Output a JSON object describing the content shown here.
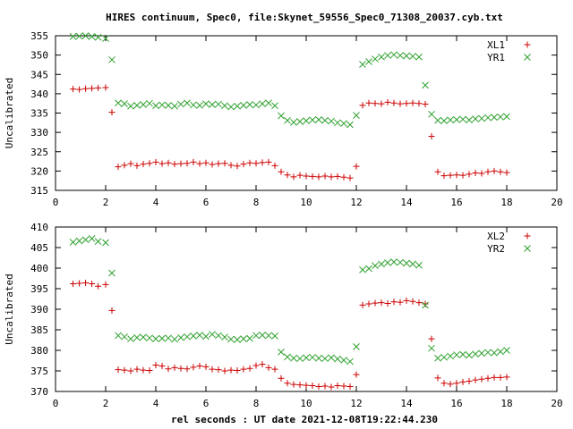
{
  "page": {
    "title": "HIRES continuum, Spec0, file:Skynet_59556_Spec0_71308_20037.cyb.txt",
    "xlabel": "rel seconds : UT date 2021-12-08T19:22:44.230"
  },
  "colors": {
    "XL": "#cc0000",
    "YR": "#2ea02e",
    "frame": "#000000"
  },
  "chart_data": [
    {
      "type": "scatter",
      "title": "HIRES continuum, Spec0, file:Skynet_59556_Spec0_71308_20037.cyb.txt",
      "xlabel": "",
      "ylabel": "Uncalibrated",
      "xlim": [
        0,
        20
      ],
      "ylim": [
        315,
        355
      ],
      "xticks": [
        0,
        2,
        4,
        6,
        8,
        10,
        12,
        14,
        16,
        18,
        20
      ],
      "yticks": [
        315,
        320,
        325,
        330,
        335,
        340,
        345,
        350,
        355
      ],
      "grid": false,
      "legend_position": "top-right",
      "series": [
        {
          "name": "XL1",
          "color": "#cc0000",
          "marker": "plus",
          "x": [
            0.7,
            0.95,
            1.2,
            1.45,
            1.7,
            2.0,
            2.25,
            2.5,
            2.75,
            3.0,
            3.25,
            3.5,
            3.75,
            4.0,
            4.25,
            4.5,
            4.75,
            5.0,
            5.25,
            5.5,
            5.75,
            6.0,
            6.25,
            6.5,
            6.75,
            7.0,
            7.25,
            7.5,
            7.75,
            8.0,
            8.25,
            8.5,
            8.75,
            9.0,
            9.25,
            9.5,
            9.75,
            10.0,
            10.25,
            10.5,
            10.75,
            11.0,
            11.25,
            11.5,
            11.75,
            12.0,
            12.25,
            12.5,
            12.75,
            13.0,
            13.25,
            13.5,
            13.75,
            14.0,
            14.25,
            14.5,
            14.75,
            15.0,
            15.25,
            15.5,
            15.75,
            16.0,
            16.25,
            16.5,
            16.75,
            17.0,
            17.25,
            17.5,
            17.75,
            18.0
          ],
          "y": [
            341.2,
            341.1,
            341.3,
            341.4,
            341.5,
            341.6,
            335.2,
            321.1,
            321.5,
            321.9,
            321.4,
            321.8,
            322.0,
            322.3,
            321.9,
            322.1,
            321.8,
            321.9,
            322.0,
            322.3,
            321.9,
            322.1,
            321.7,
            321.9,
            322.0,
            321.5,
            321.3,
            321.8,
            322.1,
            322.0,
            322.2,
            322.3,
            321.4,
            319.8,
            319.0,
            318.5,
            318.9,
            318.7,
            318.6,
            318.5,
            318.7,
            318.5,
            318.6,
            318.4,
            318.2,
            321.2,
            337.0,
            337.6,
            337.5,
            337.4,
            337.8,
            337.6,
            337.4,
            337.5,
            337.6,
            337.5,
            337.3,
            329.0,
            319.8,
            318.8,
            318.9,
            319.0,
            318.9,
            319.2,
            319.5,
            319.4,
            319.8,
            320.0,
            319.8,
            319.6
          ]
        },
        {
          "name": "YR1",
          "color": "#2ea02e",
          "marker": "cross",
          "x": [
            0.7,
            0.95,
            1.2,
            1.45,
            1.7,
            2.0,
            2.25,
            2.5,
            2.75,
            3.0,
            3.25,
            3.5,
            3.75,
            4.0,
            4.25,
            4.5,
            4.75,
            5.0,
            5.25,
            5.5,
            5.75,
            6.0,
            6.25,
            6.5,
            6.75,
            7.0,
            7.25,
            7.5,
            7.75,
            8.0,
            8.25,
            8.5,
            8.75,
            9.0,
            9.25,
            9.5,
            9.75,
            10.0,
            10.25,
            10.5,
            10.75,
            11.0,
            11.25,
            11.5,
            11.75,
            12.0,
            12.25,
            12.5,
            12.75,
            13.0,
            13.25,
            13.5,
            13.75,
            14.0,
            14.25,
            14.5,
            14.75,
            15.0,
            15.25,
            15.5,
            15.75,
            16.0,
            16.25,
            16.5,
            16.75,
            17.0,
            17.25,
            17.5,
            17.75,
            18.0
          ],
          "y": [
            354.8,
            354.9,
            355.0,
            354.8,
            354.6,
            354.3,
            348.8,
            337.6,
            337.4,
            336.8,
            337.0,
            337.2,
            337.5,
            336.9,
            337.1,
            337.0,
            336.8,
            337.3,
            337.6,
            337.1,
            337.0,
            337.4,
            337.2,
            337.3,
            336.9,
            336.6,
            336.8,
            337.0,
            337.2,
            337.1,
            337.4,
            337.6,
            336.9,
            334.3,
            333.1,
            332.6,
            332.8,
            333.0,
            333.2,
            333.3,
            333.1,
            332.9,
            332.5,
            332.3,
            332.0,
            334.4,
            347.6,
            348.3,
            349.0,
            349.5,
            349.9,
            350.1,
            349.9,
            349.8,
            349.7,
            349.5,
            342.2,
            334.7,
            333.1,
            333.0,
            333.2,
            333.3,
            333.4,
            333.2,
            333.5,
            333.6,
            333.8,
            333.9,
            334.0,
            334.1
          ]
        }
      ]
    },
    {
      "type": "scatter",
      "title": "",
      "xlabel": "rel seconds : UT date 2021-12-08T19:22:44.230",
      "ylabel": "Uncalibrated",
      "xlim": [
        0,
        20
      ],
      "ylim": [
        370,
        410
      ],
      "xticks": [
        0,
        2,
        4,
        6,
        8,
        10,
        12,
        14,
        16,
        18,
        20
      ],
      "yticks": [
        370,
        375,
        380,
        385,
        390,
        395,
        400,
        405,
        410
      ],
      "grid": false,
      "legend_position": "top-right",
      "series": [
        {
          "name": "XL2",
          "color": "#cc0000",
          "marker": "plus",
          "x": [
            0.7,
            0.95,
            1.2,
            1.45,
            1.7,
            2.0,
            2.25,
            2.5,
            2.75,
            3.0,
            3.25,
            3.5,
            3.75,
            4.0,
            4.25,
            4.5,
            4.75,
            5.0,
            5.25,
            5.5,
            5.75,
            6.0,
            6.25,
            6.5,
            6.75,
            7.0,
            7.25,
            7.5,
            7.75,
            8.0,
            8.25,
            8.5,
            8.75,
            9.0,
            9.25,
            9.5,
            9.75,
            10.0,
            10.25,
            10.5,
            10.75,
            11.0,
            11.25,
            11.5,
            11.75,
            12.0,
            12.25,
            12.5,
            12.75,
            13.0,
            13.25,
            13.5,
            13.75,
            14.0,
            14.25,
            14.5,
            14.75,
            15.0,
            15.25,
            15.5,
            15.75,
            16.0,
            16.25,
            16.5,
            16.75,
            17.0,
            17.25,
            17.5,
            17.75,
            18.0
          ],
          "y": [
            396.2,
            396.3,
            396.4,
            396.2,
            395.6,
            396.0,
            389.7,
            375.3,
            375.2,
            375.0,
            375.4,
            375.2,
            375.1,
            376.4,
            376.2,
            375.5,
            375.8,
            375.6,
            375.5,
            375.9,
            376.2,
            376.0,
            375.4,
            375.3,
            375.0,
            375.2,
            375.1,
            375.4,
            375.6,
            376.3,
            376.6,
            375.8,
            375.4,
            373.2,
            372.0,
            371.7,
            371.6,
            371.5,
            371.4,
            371.2,
            371.3,
            371.1,
            371.4,
            371.3,
            371.2,
            374.1,
            391.0,
            391.3,
            391.5,
            391.6,
            391.4,
            391.8,
            391.7,
            392.1,
            391.9,
            391.6,
            391.3,
            382.8,
            373.3,
            372.0,
            371.8,
            372.0,
            372.3,
            372.5,
            372.8,
            373.0,
            373.2,
            373.4,
            373.4,
            373.5
          ]
        },
        {
          "name": "YR2",
          "color": "#2ea02e",
          "marker": "cross",
          "x": [
            0.7,
            0.95,
            1.2,
            1.45,
            1.7,
            2.0,
            2.25,
            2.5,
            2.75,
            3.0,
            3.25,
            3.5,
            3.75,
            4.0,
            4.25,
            4.5,
            4.75,
            5.0,
            5.25,
            5.5,
            5.75,
            6.0,
            6.25,
            6.5,
            6.75,
            7.0,
            7.25,
            7.5,
            7.75,
            8.0,
            8.25,
            8.5,
            8.75,
            9.0,
            9.25,
            9.5,
            9.75,
            10.0,
            10.25,
            10.5,
            10.75,
            11.0,
            11.25,
            11.5,
            11.75,
            12.0,
            12.25,
            12.5,
            12.75,
            13.0,
            13.25,
            13.5,
            13.75,
            14.0,
            14.25,
            14.5,
            14.75,
            15.0,
            15.25,
            15.5,
            15.75,
            16.0,
            16.25,
            16.5,
            16.75,
            17.0,
            17.25,
            17.5,
            17.75,
            18.0
          ],
          "y": [
            406.3,
            406.6,
            406.9,
            407.2,
            406.5,
            406.2,
            398.8,
            383.6,
            383.3,
            382.8,
            383.1,
            383.2,
            383.0,
            382.8,
            382.9,
            383.0,
            382.7,
            383.1,
            383.3,
            383.5,
            383.7,
            383.4,
            383.9,
            383.6,
            383.2,
            382.7,
            382.6,
            382.8,
            382.9,
            383.6,
            383.7,
            383.6,
            383.5,
            379.6,
            378.4,
            378.1,
            378.0,
            378.2,
            378.3,
            378.1,
            378.0,
            378.2,
            377.9,
            377.6,
            377.3,
            380.9,
            399.6,
            399.9,
            400.6,
            401.0,
            401.3,
            401.5,
            401.4,
            401.2,
            401.0,
            400.7,
            391.0,
            380.5,
            378.1,
            378.3,
            378.6,
            378.9,
            379.0,
            378.8,
            379.1,
            379.3,
            379.5,
            379.4,
            379.7,
            380.0
          ]
        }
      ]
    }
  ]
}
